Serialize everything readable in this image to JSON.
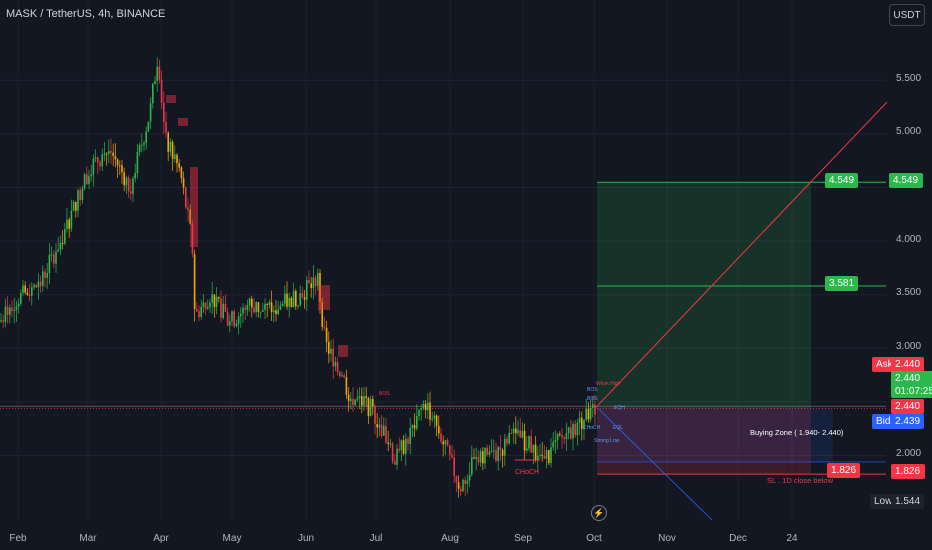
{
  "header": {
    "title": "MASK / TetherUS, 4h, BINANCE"
  },
  "currency_button": {
    "label": "USDT"
  },
  "price_axis": {
    "ticks": [
      "5.500",
      "5.000",
      "4.000",
      "3.500",
      "3.000",
      "2.000"
    ]
  },
  "time_axis": {
    "ticks": [
      "Feb",
      "Mar",
      "Apr",
      "May",
      "Jun",
      "Jul",
      "Aug",
      "Sep",
      "Oct",
      "Nov",
      "Dec",
      "24"
    ]
  },
  "price_tags": {
    "target_high": "4.549",
    "target_mid": "3.581",
    "stop": "1.826",
    "ask_label": "Ask",
    "ask_value": "2.440",
    "last_price": "2.440",
    "countdown": "01:07:25",
    "last_line": "2.440",
    "bid_label": "Bid",
    "bid_value": "2.439",
    "low_label": "Low",
    "low_value": "1.544",
    "axis_target_high": "4.549",
    "axis_stop": "1.826"
  },
  "annotations": {
    "buying_zone": "Buying Zone ( 1.940- 2.440)",
    "stop_loss": "SL . 1D close below",
    "choch": "CHoCH",
    "bos_top": "BOS",
    "bos_mid": "BOS",
    "bos_jul": "BOS",
    "weak_high": "Weak High",
    "strong_low": "Strong Low",
    "eql": "EQL",
    "eqh": "EQH",
    "choch_small": "CHoCH"
  },
  "colors": {
    "background": "#131722",
    "up": "#2db84d",
    "down": "#f23645",
    "accent": "#f7a600"
  }
}
